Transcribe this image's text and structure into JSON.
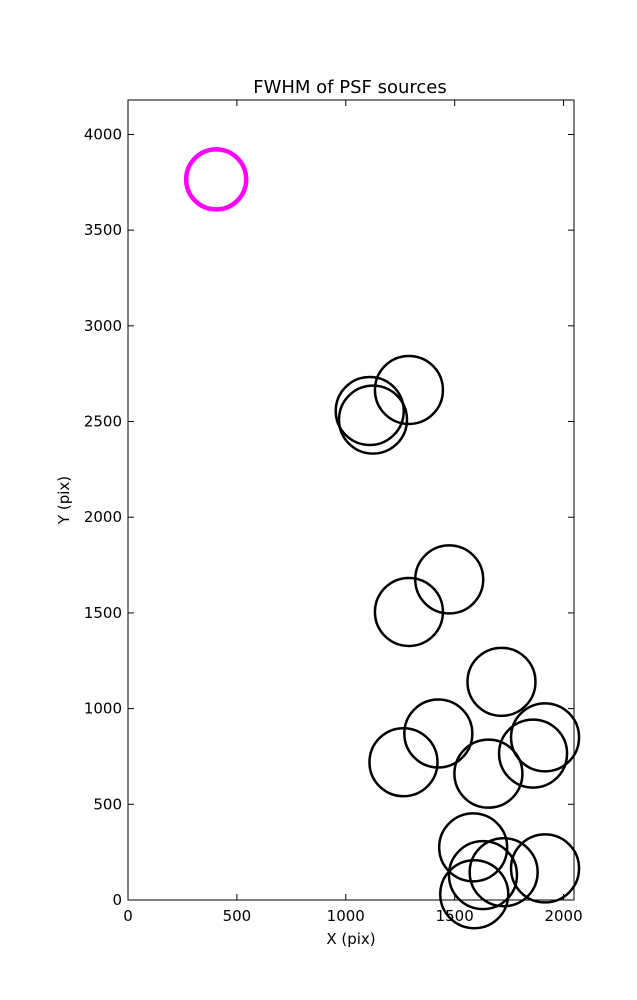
{
  "chart_data": {
    "type": "scatter",
    "title": "FWHM of PSF sources",
    "xlabel": "X (pix)",
    "ylabel": "Y (pix)",
    "xlim": [
      0,
      2048
    ],
    "ylim": [
      0,
      4180
    ],
    "x_ticks": [
      "0",
      "500",
      "1000",
      "1500",
      "2000"
    ],
    "y_ticks": [
      "0",
      "500",
      "1000",
      "1500",
      "2000",
      "2500",
      "3000",
      "3500",
      "4000"
    ],
    "grid": false,
    "legend": "none",
    "marker": "open-circle",
    "series": [
      {
        "color": "#ff00ff",
        "points": [
          {
            "x": 405,
            "y": 3765
          }
        ]
      },
      {
        "color": "#000000",
        "points": [
          {
            "x": 1290,
            "y": 2665
          },
          {
            "x": 1110,
            "y": 2555
          },
          {
            "x": 1125,
            "y": 2510
          },
          {
            "x": 1475,
            "y": 1675
          },
          {
            "x": 1290,
            "y": 1505
          },
          {
            "x": 1715,
            "y": 1140
          },
          {
            "x": 1915,
            "y": 850
          },
          {
            "x": 1425,
            "y": 870
          },
          {
            "x": 1860,
            "y": 765
          },
          {
            "x": 1265,
            "y": 720
          },
          {
            "x": 1655,
            "y": 660
          },
          {
            "x": 1585,
            "y": 275
          },
          {
            "x": 1915,
            "y": 165
          },
          {
            "x": 1725,
            "y": 145
          },
          {
            "x": 1630,
            "y": 130
          },
          {
            "x": 1590,
            "y": 30
          }
        ]
      }
    ]
  }
}
